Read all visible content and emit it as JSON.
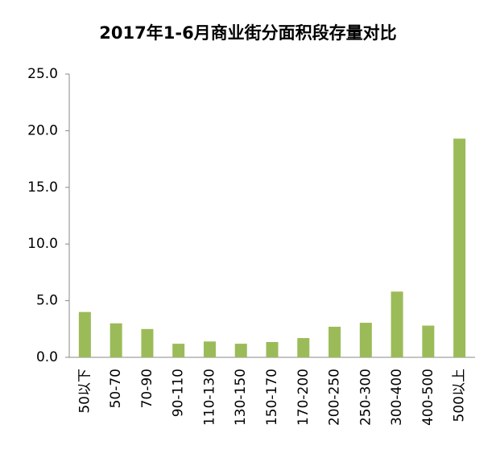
{
  "chart_data": {
    "type": "bar",
    "title": "2017年1-6月商业街分面积段存量对比",
    "categories": [
      "50以下",
      "50-70",
      "70-90",
      "90-110",
      "110-130",
      "130-150",
      "150-170",
      "170-200",
      "200-250",
      "250-300",
      "300-400",
      "400-500",
      "500以上"
    ],
    "values": [
      4.0,
      3.0,
      2.5,
      1.2,
      1.4,
      1.2,
      1.35,
      1.7,
      2.7,
      3.05,
      5.8,
      2.8,
      19.3
    ],
    "color": "#9bbb59",
    "ylim": [
      0,
      25
    ],
    "yticks": [
      {
        "value": 0,
        "label": "0.0"
      },
      {
        "value": 5,
        "label": "5.0"
      },
      {
        "value": 10,
        "label": "10.0"
      },
      {
        "value": 15,
        "label": "15.0"
      },
      {
        "value": 20,
        "label": "20.0"
      },
      {
        "value": 25,
        "label": "25.0"
      }
    ],
    "grid": false
  }
}
